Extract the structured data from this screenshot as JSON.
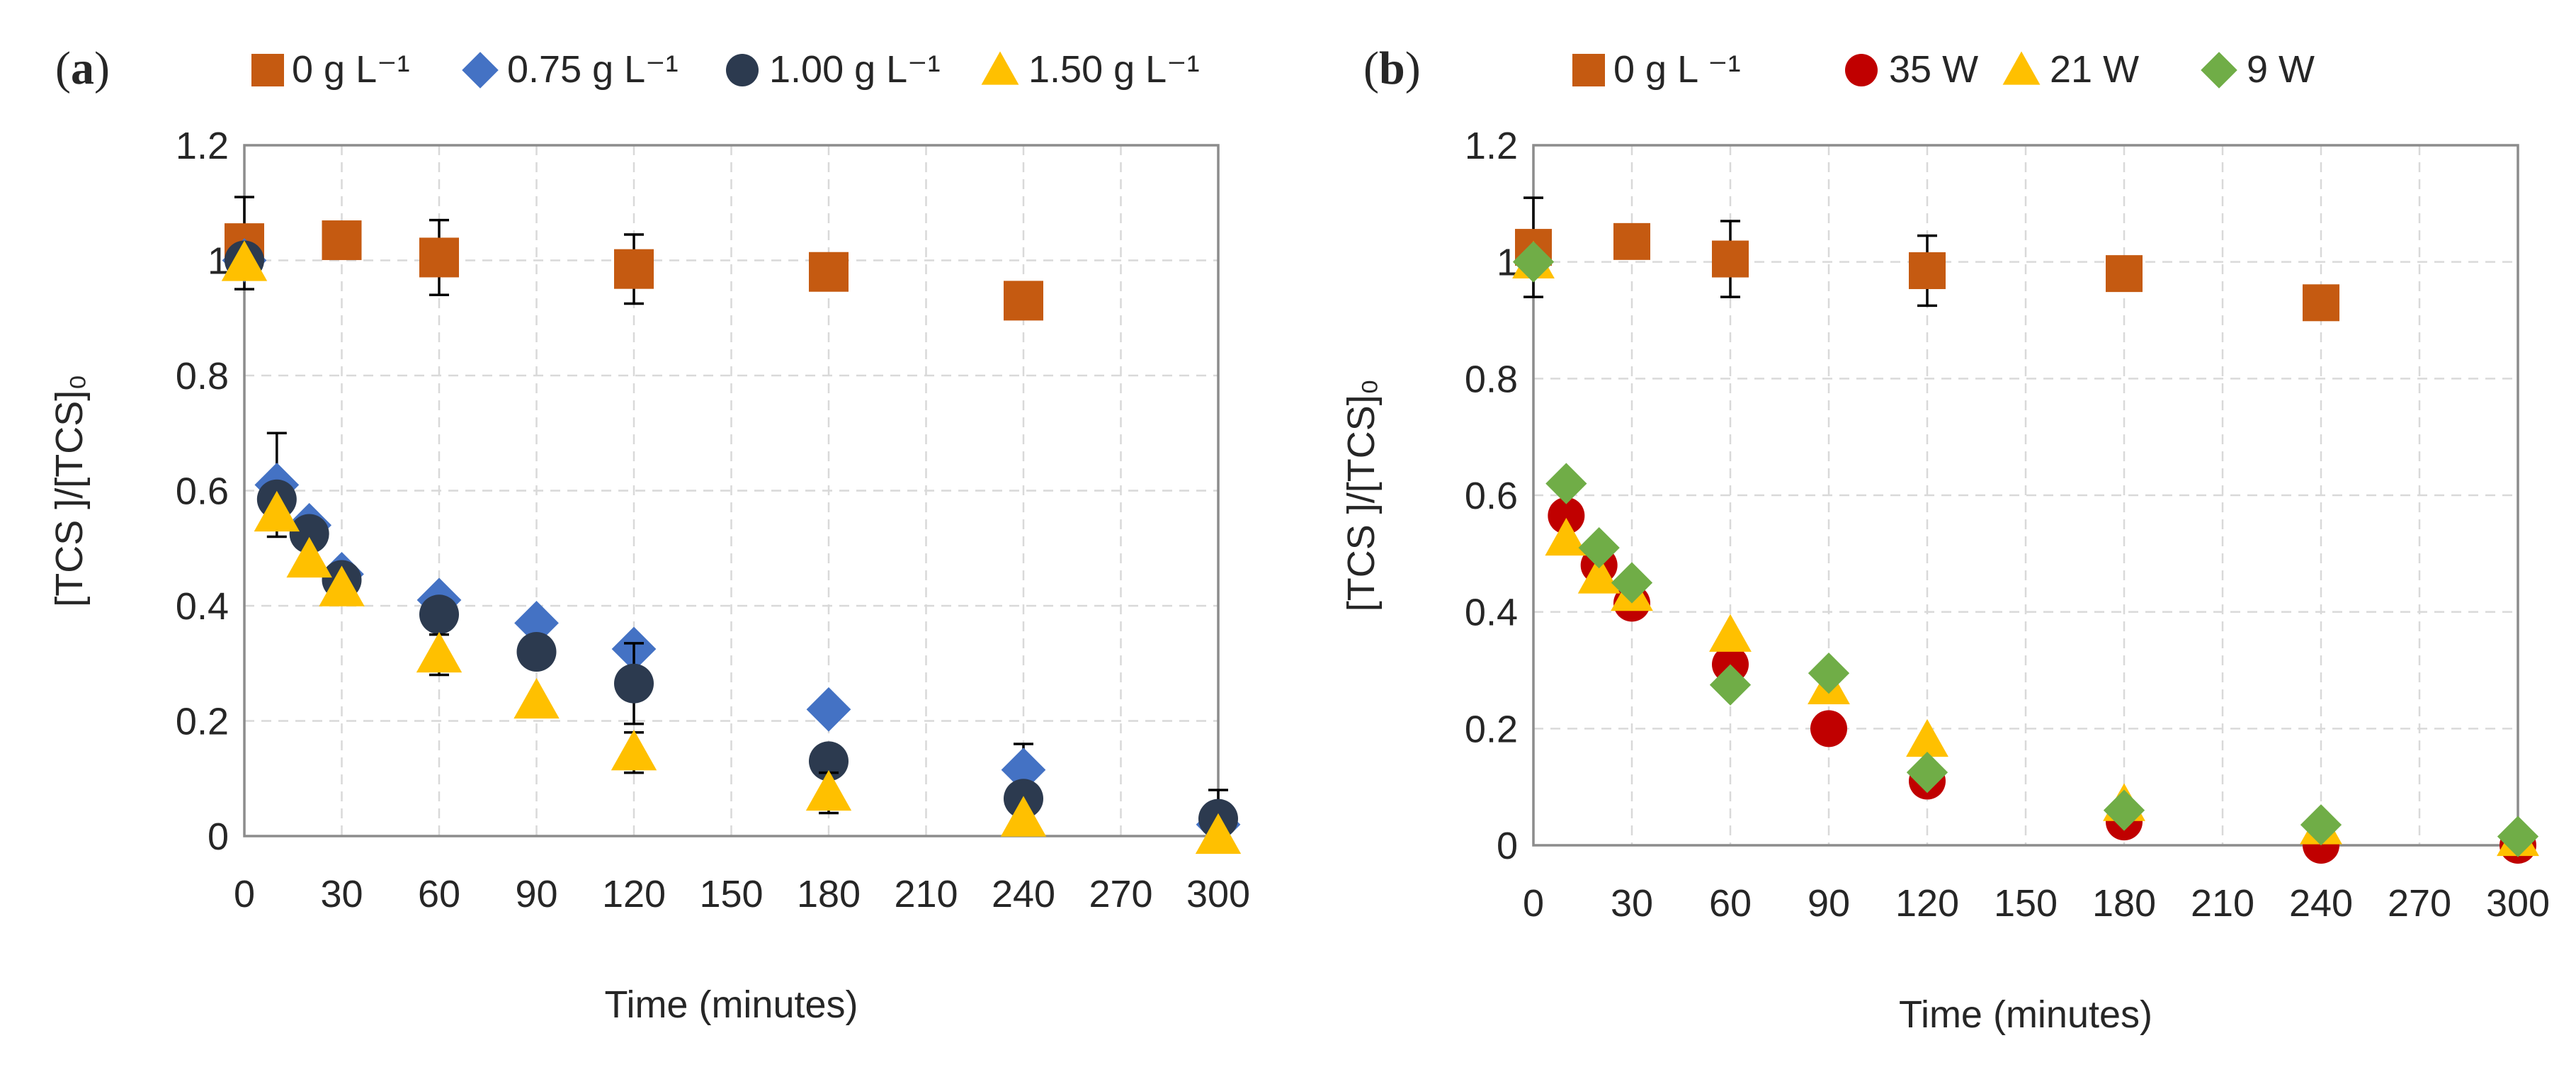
{
  "chart_data": [
    {
      "type": "scatter",
      "panel_label": "a",
      "title": "",
      "xlabel": "Time (minutes)",
      "ylabel": "[TCS ]/[TCS]₀",
      "xlim": [
        0,
        300
      ],
      "ylim": [
        0,
        1.2
      ],
      "x_ticks": [
        "0",
        "30",
        "60",
        "90",
        "120",
        "150",
        "180",
        "210",
        "240",
        "270",
        "300"
      ],
      "y_ticks": [
        "0",
        "0.2",
        "0.4",
        "0.6",
        "0.8",
        "1",
        "1.2"
      ],
      "grid": true,
      "legend_position": "top",
      "series": [
        {
          "name": "0 g L⁻¹",
          "marker": "square",
          "color": "#C55A11",
          "x": [
            0,
            30,
            60,
            120,
            180,
            240
          ],
          "y": [
            1.03,
            1.035,
            1.005,
            0.985,
            0.98,
            0.93
          ],
          "err": [
            0.08,
            0,
            0.065,
            0.06,
            0,
            0
          ]
        },
        {
          "name": "0.75 g L⁻¹",
          "marker": "diamond",
          "color": "#4472C4",
          "x": [
            0,
            10,
            20,
            30,
            60,
            90,
            120,
            180,
            240,
            300
          ],
          "y": [
            1.0,
            0.61,
            0.54,
            0.455,
            0.41,
            0.37,
            0.325,
            0.22,
            0.115,
            0.02
          ],
          "err": [
            0,
            0.09,
            0,
            0,
            0,
            0,
            0,
            0,
            0.045,
            0
          ]
        },
        {
          "name": "1.00 g L⁻¹",
          "marker": "circle",
          "color": "#2C3A4F",
          "x": [
            0,
            10,
            20,
            30,
            60,
            90,
            120,
            180,
            240,
            300
          ],
          "y": [
            1.0,
            0.585,
            0.525,
            0.445,
            0.385,
            0.32,
            0.265,
            0.13,
            0.065,
            0.03
          ],
          "err": [
            0,
            0,
            0,
            0,
            0,
            0,
            0.07,
            0,
            0,
            0.05
          ]
        },
        {
          "name": "1.50 g L⁻¹",
          "marker": "triangle",
          "color": "#FFC000",
          "x": [
            0,
            10,
            20,
            30,
            60,
            90,
            120,
            180,
            240,
            300
          ],
          "y": [
            0.995,
            0.56,
            0.48,
            0.43,
            0.315,
            0.235,
            0.145,
            0.075,
            0.03,
            0.0
          ],
          "err": [
            0,
            0,
            0,
            0,
            0.035,
            0,
            0.035,
            0.035,
            0,
            0
          ]
        }
      ]
    },
    {
      "type": "scatter",
      "panel_label": "b",
      "title": "",
      "xlabel": "Time (minutes)",
      "ylabel": "[TCS ]/[TCS]₀",
      "xlim": [
        0,
        300
      ],
      "ylim": [
        0,
        1.2
      ],
      "x_ticks": [
        "0",
        "30",
        "60",
        "90",
        "120",
        "150",
        "180",
        "210",
        "240",
        "270",
        "300"
      ],
      "y_ticks": [
        "0",
        "0.2",
        "0.4",
        "0.6",
        "0.8",
        "1",
        "1.2"
      ],
      "grid": true,
      "legend_position": "top",
      "series": [
        {
          "name": "0 g L ⁻¹",
          "marker": "square",
          "color": "#C55A11",
          "x": [
            0,
            30,
            60,
            120,
            180,
            240
          ],
          "y": [
            1.025,
            1.035,
            1.005,
            0.985,
            0.98,
            0.93
          ],
          "err": [
            0.085,
            0,
            0.065,
            0.06,
            0,
            0
          ]
        },
        {
          "name": "35 W",
          "marker": "circle",
          "color": "#C00000",
          "x": [
            10,
            20,
            30,
            60,
            90,
            120,
            180,
            240,
            300
          ],
          "y": [
            0.565,
            0.48,
            0.415,
            0.31,
            0.2,
            0.11,
            0.04,
            0.0,
            0.0
          ],
          "err": [
            0,
            0,
            0,
            0,
            0,
            0,
            0,
            0,
            0
          ]
        },
        {
          "name": "21 W",
          "marker": "triangle",
          "color": "#FFC000",
          "x": [
            0,
            10,
            20,
            30,
            60,
            90,
            120,
            180,
            240,
            300
          ],
          "y": [
            1.0,
            0.525,
            0.46,
            0.43,
            0.36,
            0.27,
            0.18,
            0.07,
            0.03,
            0.01
          ],
          "err": [
            0,
            0,
            0,
            0,
            0,
            0,
            0,
            0,
            0,
            0
          ]
        },
        {
          "name": "9 W",
          "marker": "diamond",
          "color": "#70AD47",
          "x": [
            0,
            10,
            20,
            30,
            60,
            90,
            120,
            180,
            240,
            300
          ],
          "y": [
            1.0,
            0.62,
            0.51,
            0.45,
            0.275,
            0.295,
            0.125,
            0.06,
            0.035,
            0.015
          ],
          "err": [
            0,
            0,
            0,
            0,
            0,
            0,
            0,
            0,
            0,
            0
          ]
        }
      ]
    }
  ]
}
